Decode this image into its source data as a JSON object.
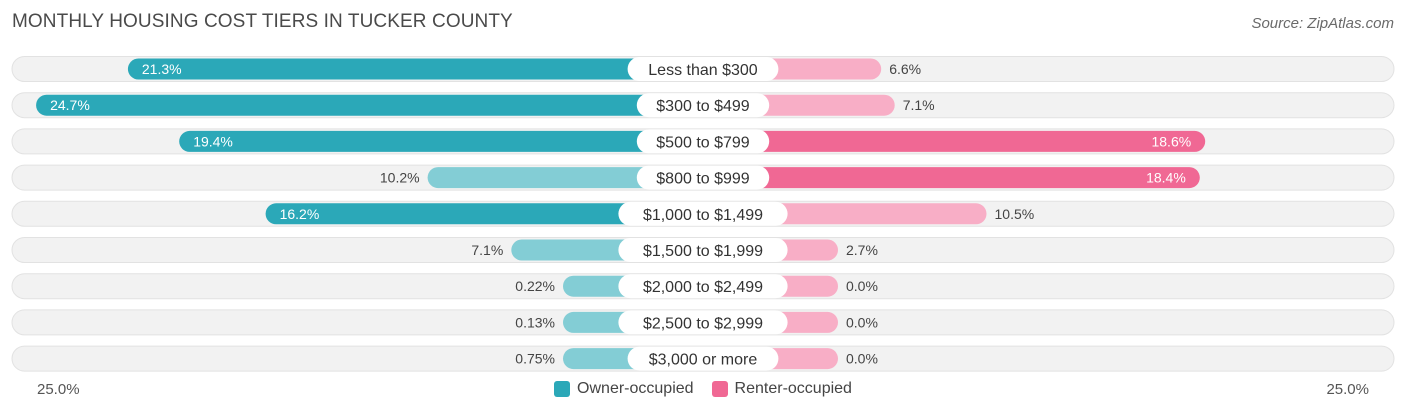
{
  "title": "MONTHLY HOUSING COST TIERS IN TUCKER COUNTY",
  "source": "Source: ZipAtlas.com",
  "colors": {
    "owner_strong": "#2ba8b8",
    "owner_light": "#83cdd5",
    "renter_strong": "#f06894",
    "renter_light": "#f8aec6",
    "track": "#f2f2f2"
  },
  "chart_data": {
    "type": "bar",
    "orientation": "horizontal-diverging",
    "title": "MONTHLY HOUSING COST TIERS IN TUCKER COUNTY",
    "xlim": [
      -25.0,
      25.0
    ],
    "axis_labels": {
      "left": "25.0%",
      "right": "25.0%"
    },
    "legend": [
      "Owner-occupied",
      "Renter-occupied"
    ],
    "legend_position": "bottom-center",
    "categories": [
      "Less than $300",
      "$300 to $499",
      "$500 to $799",
      "$800 to $999",
      "$1,000 to $1,499",
      "$1,500 to $1,999",
      "$2,000 to $2,499",
      "$2,500 to $2,999",
      "$3,000 or more"
    ],
    "series": [
      {
        "name": "Owner-occupied",
        "values": [
          21.3,
          24.7,
          19.4,
          10.2,
          16.2,
          7.1,
          0.22,
          0.13,
          0.75
        ],
        "labels": [
          "21.3%",
          "24.7%",
          "19.4%",
          "10.2%",
          "16.2%",
          "7.1%",
          "0.22%",
          "0.13%",
          "0.75%"
        ]
      },
      {
        "name": "Renter-occupied",
        "values": [
          6.6,
          7.1,
          18.6,
          18.4,
          10.5,
          2.7,
          0.0,
          0.0,
          0.0
        ],
        "labels": [
          "6.6%",
          "7.1%",
          "18.6%",
          "18.4%",
          "10.5%",
          "2.7%",
          "0.0%",
          "0.0%",
          "0.0%"
        ]
      }
    ]
  }
}
